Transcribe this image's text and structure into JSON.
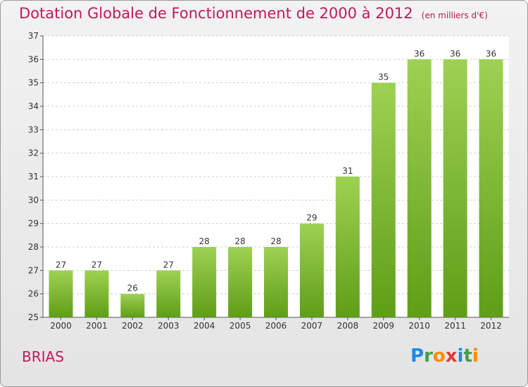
{
  "title": "Dotation Globale de Fonctionnement de 2000 à 2012",
  "unit": "(en milliers d'€)",
  "commune": "BRIAS",
  "logo": {
    "letters": [
      "P",
      "r",
      "o",
      "x",
      "i",
      "t",
      "i"
    ],
    "colors": [
      "#1e88e5",
      "#43a047",
      "#fb8c00",
      "#e53935",
      "#1e88e5",
      "#43a047",
      "#fb8c00"
    ]
  },
  "colors": {
    "bar_top": "#9ed153",
    "bar_bottom": "#5f9e17",
    "accent": "#c2185b",
    "grid": "#cfcfcf"
  },
  "chart_data": {
    "type": "bar",
    "categories": [
      "2000",
      "2001",
      "2002",
      "2003",
      "2004",
      "2005",
      "2006",
      "2007",
      "2008",
      "2009",
      "2010",
      "2011",
      "2012"
    ],
    "values": [
      27,
      27,
      26,
      27,
      28,
      28,
      28,
      29,
      31,
      35,
      36,
      36,
      36
    ],
    "title": "Dotation Globale de Fonctionnement de 2000 à 2012",
    "xlabel": "",
    "ylabel": "",
    "ylim": [
      25,
      37
    ],
    "yticks": [
      25,
      26,
      27,
      28,
      29,
      30,
      31,
      32,
      33,
      34,
      35,
      36,
      37
    ],
    "grid": true,
    "legend": "none"
  }
}
